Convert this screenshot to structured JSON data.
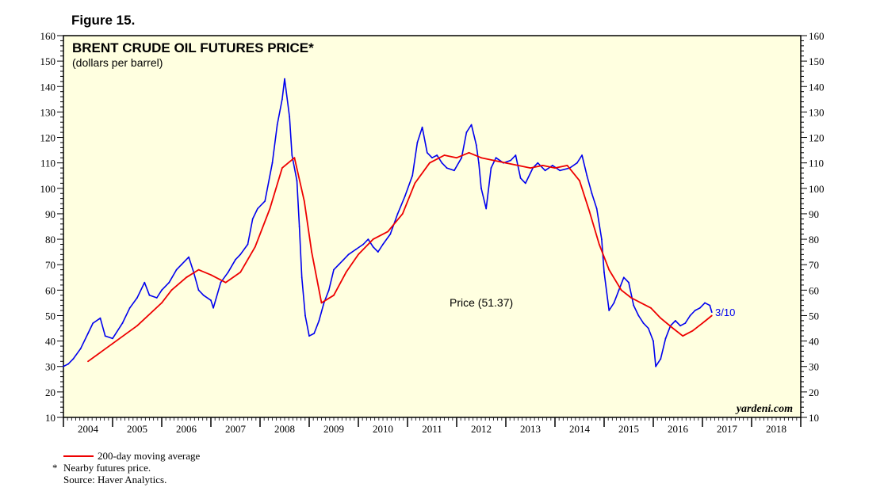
{
  "figure_label": "Figure 15.",
  "watermark": "yardeni.com",
  "footnotes": {
    "legend_ma": "200-day moving average",
    "star": "*",
    "nearby": "Nearby futures price.",
    "source": "Source: Haver Analytics."
  },
  "colors": {
    "plot_bg": "#ffffe0",
    "price": "#0000ee",
    "moving_average": "#ee0000",
    "frame": "#000000"
  },
  "chart_data": {
    "type": "line",
    "title": "BRENT CRUDE OIL FUTURES PRICE*",
    "subtitle": "(dollars per barrel)",
    "ylim": [
      10,
      160
    ],
    "y_ticks": [
      10,
      20,
      30,
      40,
      50,
      60,
      70,
      80,
      90,
      100,
      110,
      120,
      130,
      140,
      150,
      160
    ],
    "x_range": [
      2004,
      2019
    ],
    "x_tick_labels": [
      "2004",
      "2005",
      "2006",
      "2007",
      "2008",
      "2009",
      "2010",
      "2011",
      "2012",
      "2013",
      "2014",
      "2015",
      "2016",
      "2017",
      "2018"
    ],
    "grid": false,
    "annotations": {
      "price_label": "Price (51.37)",
      "last_date": "3/10"
    },
    "series": [
      {
        "key": "price",
        "x": [
          2004.0,
          2004.1,
          2004.2,
          2004.35,
          2004.5,
          2004.6,
          2004.75,
          2004.85,
          2005.0,
          2005.2,
          2005.35,
          2005.5,
          2005.65,
          2005.75,
          2005.9,
          2006.0,
          2006.15,
          2006.3,
          2006.4,
          2006.55,
          2006.65,
          2006.75,
          2006.85,
          2007.0,
          2007.05,
          2007.2,
          2007.35,
          2007.5,
          2007.6,
          2007.75,
          2007.85,
          2007.95,
          2008.1,
          2008.25,
          2008.35,
          2008.45,
          2008.5,
          2008.6,
          2008.65,
          2008.75,
          2008.8,
          2008.85,
          2008.92,
          2009.0,
          2009.1,
          2009.2,
          2009.3,
          2009.4,
          2009.5,
          2009.6,
          2009.7,
          2009.8,
          2009.95,
          2010.1,
          2010.2,
          2010.3,
          2010.4,
          2010.5,
          2010.65,
          2010.8,
          2010.95,
          2011.1,
          2011.2,
          2011.3,
          2011.4,
          2011.5,
          2011.6,
          2011.7,
          2011.8,
          2011.95,
          2012.1,
          2012.2,
          2012.3,
          2012.4,
          2012.45,
          2012.5,
          2012.6,
          2012.7,
          2012.8,
          2012.95,
          2013.1,
          2013.2,
          2013.3,
          2013.4,
          2013.55,
          2013.65,
          2013.8,
          2013.95,
          2014.1,
          2014.3,
          2014.45,
          2014.55,
          2014.65,
          2014.75,
          2014.85,
          2014.95,
          2015.0,
          2015.1,
          2015.2,
          2015.3,
          2015.4,
          2015.5,
          2015.6,
          2015.7,
          2015.8,
          2015.9,
          2016.0,
          2016.05,
          2016.15,
          2016.25,
          2016.35,
          2016.45,
          2016.55,
          2016.65,
          2016.75,
          2016.85,
          2016.95,
          2017.05,
          2017.15,
          2017.19
        ],
        "values": [
          30,
          31,
          33,
          37,
          43,
          47,
          49,
          42,
          41,
          47,
          53,
          57,
          63,
          58,
          57,
          60,
          63,
          68,
          70,
          73,
          67,
          60,
          58,
          56,
          53,
          63,
          67,
          72,
          74,
          78,
          88,
          92,
          95,
          110,
          125,
          135,
          143,
          128,
          113,
          103,
          85,
          65,
          50,
          42,
          43,
          48,
          55,
          60,
          68,
          70,
          72,
          74,
          76,
          78,
          80,
          77,
          75,
          78,
          82,
          90,
          97,
          105,
          118,
          124,
          114,
          112,
          113,
          110,
          108,
          107,
          112,
          122,
          125,
          117,
          110,
          100,
          92,
          108,
          112,
          110,
          111,
          113,
          104,
          102,
          108,
          110,
          107,
          109,
          107,
          108,
          110,
          113,
          105,
          98,
          92,
          80,
          67,
          52,
          55,
          60,
          65,
          63,
          54,
          50,
          47,
          45,
          40,
          30,
          33,
          41,
          46,
          48,
          46,
          47,
          50,
          52,
          53,
          55,
          54,
          51.37
        ]
      },
      {
        "key": "moving_average",
        "name": "200-day moving average",
        "x": [
          2004.5,
          2005.0,
          2005.5,
          2006.0,
          2006.2,
          2006.5,
          2006.75,
          2007.0,
          2007.3,
          2007.6,
          2007.9,
          2008.2,
          2008.45,
          2008.7,
          2008.9,
          2009.05,
          2009.25,
          2009.5,
          2009.75,
          2010.0,
          2010.3,
          2010.6,
          2010.9,
          2011.15,
          2011.45,
          2011.75,
          2012.0,
          2012.25,
          2012.5,
          2012.75,
          2013.0,
          2013.25,
          2013.5,
          2013.75,
          2014.0,
          2014.25,
          2014.5,
          2014.7,
          2014.9,
          2015.1,
          2015.35,
          2015.55,
          2015.75,
          2015.95,
          2016.15,
          2016.4,
          2016.6,
          2016.8,
          2017.0,
          2017.19
        ],
        "values": [
          32,
          39,
          46,
          55,
          60,
          65,
          68,
          66,
          63,
          67,
          77,
          92,
          108,
          112,
          95,
          75,
          55,
          58,
          67,
          74,
          80,
          83,
          90,
          102,
          110,
          113,
          112,
          114,
          112,
          111,
          110,
          109,
          108,
          109,
          108,
          109,
          103,
          91,
          78,
          68,
          60,
          57,
          55,
          53,
          49,
          45,
          42,
          44,
          47,
          50
        ]
      }
    ]
  }
}
